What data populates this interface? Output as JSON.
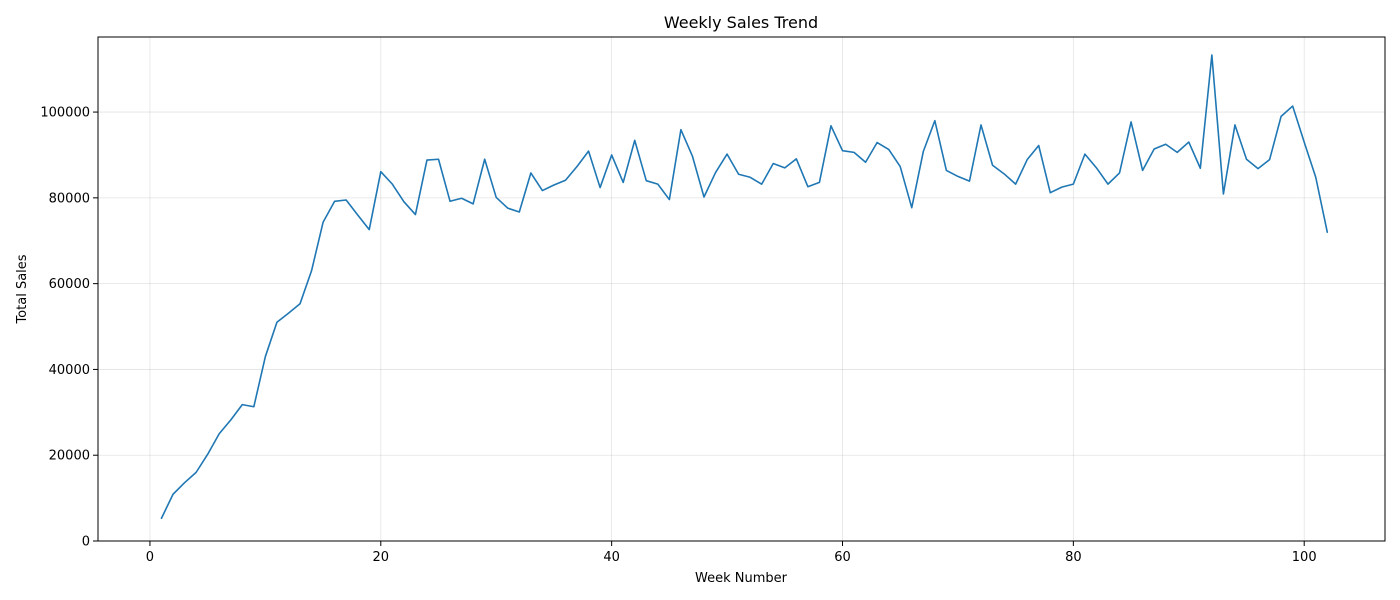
{
  "chart_data": {
    "type": "line",
    "title": "Weekly Sales Trend",
    "xlabel": "Week Number",
    "ylabel": "Total Sales",
    "xlim": [
      -4.5,
      107
    ],
    "ylim": [
      0,
      117500
    ],
    "x_ticks": [
      0,
      20,
      40,
      60,
      80,
      100
    ],
    "y_ticks": [
      0,
      20000,
      40000,
      60000,
      80000,
      100000
    ],
    "x_tick_labels": [
      "0",
      "20",
      "40",
      "60",
      "80",
      "100"
    ],
    "y_tick_labels": [
      "0",
      "20000",
      "40000",
      "60000",
      "80000",
      "100000"
    ],
    "grid": true,
    "colors": {
      "series": "#1f77b4"
    },
    "series": [
      {
        "x": [
          1,
          2,
          3,
          4,
          5,
          6,
          7,
          8,
          9,
          10,
          11,
          12,
          13,
          14,
          15,
          16,
          17,
          18,
          19,
          20,
          21,
          22,
          23,
          24,
          25,
          26,
          27,
          28,
          29,
          30,
          31,
          32,
          33,
          34,
          35,
          36,
          37,
          38,
          39,
          40,
          41,
          42,
          43,
          44,
          45,
          46,
          47,
          48,
          49,
          50,
          51,
          52,
          53,
          54,
          55,
          56,
          57,
          58,
          59,
          60,
          61,
          62,
          63,
          64,
          65,
          66,
          67,
          68,
          69,
          70,
          71,
          72,
          73,
          74,
          75,
          76,
          77,
          78,
          79,
          80,
          81,
          82,
          83,
          84,
          85,
          86,
          87,
          88,
          89,
          90,
          91,
          92,
          93,
          94,
          95,
          96,
          97,
          98,
          99,
          100,
          101,
          102
        ],
        "values": [
          5300,
          10900,
          13600,
          16000,
          20200,
          25000,
          28200,
          31800,
          31300,
          43000,
          51000,
          53100,
          55300,
          63000,
          74300,
          79200,
          79500,
          76000,
          72600,
          86100,
          83200,
          79100,
          76100,
          88800,
          89000,
          79200,
          79900,
          78600,
          89000,
          80100,
          77600,
          76700,
          85800,
          81700,
          83000,
          84100,
          87300,
          90900,
          82400,
          90000,
          83600,
          93400,
          84000,
          83200,
          79600,
          95900,
          89700,
          80200,
          85900,
          90200,
          85500,
          84800,
          83200,
          88000,
          87000,
          89100,
          82600,
          83600,
          96800,
          91000,
          90600,
          88300,
          92900,
          91300,
          87300,
          77700,
          90800,
          98000,
          86400,
          85000,
          83900,
          97000,
          87600,
          85600,
          83200,
          88900,
          92200,
          81200,
          82500,
          83200,
          90200,
          87000,
          83200,
          85800,
          97700,
          86400,
          91400,
          92500,
          90600,
          93000,
          86900,
          113300,
          80900,
          97000,
          89000,
          86800,
          88900,
          99000,
          101400,
          93000,
          84800,
          72000
        ]
      }
    ]
  }
}
